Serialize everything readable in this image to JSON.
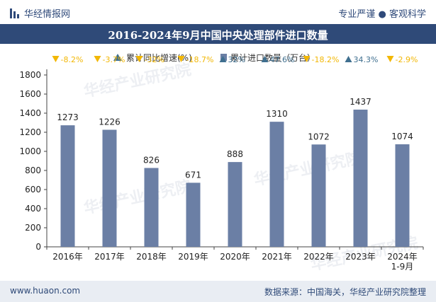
{
  "header": {
    "brand": "华经情报网",
    "tagline": "专业严谨 ● 客观科学"
  },
  "footer": {
    "url": "www.huaon.com",
    "source": "数据来源：中国海关，华经产业研究院整理"
  },
  "watermark": "华经产业研究院",
  "colors": {
    "bar": "#6b7fa5",
    "up": "#3f6f8f",
    "down": "#f2b705",
    "title_bg": "#2f4a78"
  },
  "chart_data": {
    "type": "bar",
    "title": "2016-2024年9月中国中央处理部件进口数量",
    "categories": [
      "2016年",
      "2017年",
      "2018年",
      "2019年",
      "2020年",
      "2021年",
      "2022年",
      "2023年",
      "2024年 1-9月"
    ],
    "series": [
      {
        "name": "累计进口数量（万台）",
        "values": [
          1273,
          1226,
          826,
          671,
          888,
          1310,
          1072,
          1437,
          1074
        ]
      },
      {
        "name": "累计同比增速(%)",
        "values": [
          -8.2,
          -3.7,
          -32,
          -18.7,
          32,
          47.6,
          -18.2,
          34.3,
          -2.9
        ]
      }
    ],
    "growth_labels": [
      "-8.2%",
      "-3.7%",
      "-32%",
      "-18.7%",
      "32%",
      "47.6%",
      "-18.2%",
      "34.3%",
      "-2.9%"
    ],
    "ylim": [
      0,
      1800
    ],
    "yticks": [
      0,
      200,
      400,
      600,
      800,
      1000,
      1200,
      1400,
      1600,
      1800
    ],
    "legend_position": "top-center",
    "grid": false
  }
}
